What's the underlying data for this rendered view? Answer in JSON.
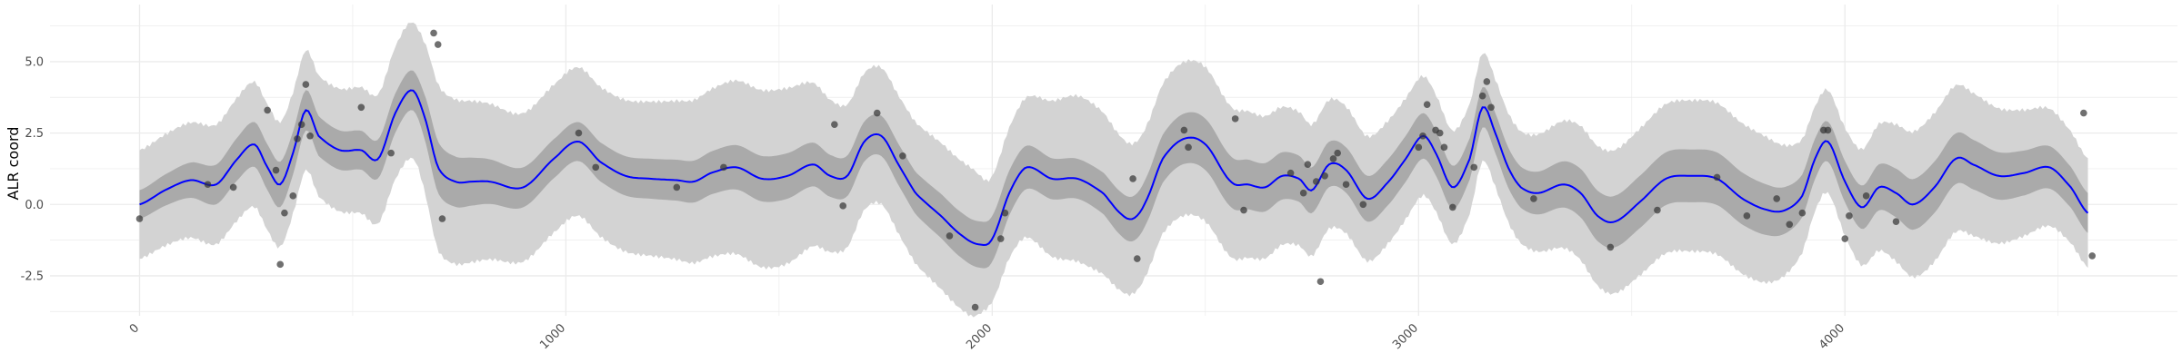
{
  "chart_data": {
    "type": "line",
    "title": "",
    "xlabel": "",
    "ylabel": "ALR coord",
    "xlim": [
      -210,
      4780
    ],
    "ylim": [
      -3.9,
      7.0
    ],
    "x_ticks": [
      0,
      1000,
      2000,
      3000,
      4000
    ],
    "x_tick_labels": [
      "0",
      "1000",
      "2000",
      "3000",
      "4000"
    ],
    "y_ticks": [
      -2.5,
      0.0,
      2.5,
      5.0
    ],
    "y_tick_labels": [
      "-2.5",
      "0.0",
      "2.5",
      "5.0"
    ],
    "grid": true,
    "legend": "none",
    "colors": {
      "mean_line": "#0000ff",
      "inner_band": "#aaaaaa",
      "outer_band": "#d3d3d3",
      "points": "#333333",
      "grid": "#ebebeb"
    },
    "series": [
      {
        "kind": "mean",
        "x": [
          0,
          60,
          120,
          180,
          230,
          270,
          300,
          330,
          360,
          390,
          420,
          470,
          520,
          560,
          600,
          640,
          670,
          700,
          740,
          780,
          820,
          900,
          980,
          1030,
          1080,
          1140,
          1200,
          1260,
          1300,
          1340,
          1400,
          1460,
          1520,
          1580,
          1620,
          1660,
          1700,
          1740,
          1780,
          1820,
          1880,
          1930,
          1970,
          2000,
          2040,
          2080,
          2140,
          2200,
          2260,
          2300,
          2330,
          2360,
          2400,
          2450,
          2500,
          2560,
          2600,
          2640,
          2680,
          2720,
          2750,
          2790,
          2830,
          2880,
          2930,
          2970,
          3010,
          3040,
          3080,
          3120,
          3150,
          3180,
          3210,
          3240,
          3280,
          3340,
          3380,
          3420,
          3460,
          3520,
          3580,
          3640,
          3700,
          3760,
          3820,
          3860,
          3900,
          3930,
          3960,
          4000,
          4040,
          4080,
          4120,
          4160,
          4210,
          4260,
          4300,
          4360,
          4420,
          4480,
          4530,
          4570
        ],
        "y": [
          0.0,
          0.5,
          0.85,
          0.7,
          1.6,
          2.1,
          1.3,
          0.7,
          1.8,
          3.3,
          2.4,
          1.9,
          1.9,
          1.6,
          3.2,
          4.0,
          3.0,
          1.3,
          0.8,
          0.8,
          0.8,
          0.6,
          1.7,
          2.2,
          1.5,
          1.0,
          0.9,
          0.85,
          0.8,
          1.1,
          1.3,
          0.9,
          1.0,
          1.4,
          1.0,
          1.0,
          2.2,
          2.4,
          1.4,
          0.4,
          -0.4,
          -1.1,
          -1.4,
          -1.2,
          0.4,
          1.3,
          0.9,
          0.9,
          0.4,
          -0.3,
          -0.5,
          0.1,
          1.6,
          2.3,
          2.1,
          0.8,
          0.7,
          0.6,
          1.0,
          0.9,
          0.5,
          1.4,
          1.2,
          0.2,
          0.8,
          1.6,
          2.4,
          1.8,
          0.6,
          1.6,
          3.4,
          2.5,
          1.3,
          0.6,
          0.4,
          0.7,
          0.4,
          -0.4,
          -0.6,
          0.1,
          0.9,
          1.0,
          0.9,
          0.2,
          -0.2,
          -0.2,
          0.3,
          1.6,
          2.2,
          0.8,
          -0.1,
          0.6,
          0.4,
          0.0,
          0.6,
          1.6,
          1.4,
          1.0,
          1.1,
          1.3,
          0.6,
          -0.3
        ]
      },
      {
        "kind": "inner_band_halfwidth",
        "x": [
          0,
          300,
          400,
          650,
          700,
          900,
          1200,
          1500,
          1700,
          1950,
          2000,
          2200,
          2350,
          2500,
          2750,
          3000,
          3200,
          3450,
          3800,
          3950,
          4200,
          4570
        ],
        "y": [
          0.5,
          0.8,
          0.7,
          0.7,
          0.9,
          0.7,
          0.7,
          0.8,
          0.7,
          0.8,
          0.8,
          0.7,
          0.8,
          0.9,
          0.8,
          0.8,
          0.7,
          0.9,
          0.9,
          0.7,
          0.9,
          0.7
        ]
      },
      {
        "kind": "outer_band_halfwidth",
        "x": [
          0,
          300,
          400,
          650,
          700,
          900,
          1200,
          1500,
          1700,
          1950,
          2000,
          2200,
          2350,
          2500,
          2750,
          3000,
          3200,
          3450,
          3800,
          3950,
          4200,
          4570
        ],
        "y": [
          1.9,
          2.2,
          2.1,
          2.4,
          2.9,
          2.6,
          2.7,
          3.1,
          2.4,
          2.6,
          2.2,
          2.9,
          2.6,
          2.7,
          2.3,
          2.1,
          1.9,
          2.5,
          2.6,
          1.8,
          2.6,
          1.9
        ]
      },
      {
        "kind": "points",
        "x": [
          0,
          160,
          220,
          300,
          320,
          330,
          340,
          360,
          370,
          380,
          390,
          400,
          520,
          590,
          690,
          700,
          710,
          1030,
          1070,
          1260,
          1370,
          1630,
          1650,
          1730,
          1790,
          1900,
          1960,
          2020,
          2030,
          2330,
          2340,
          2450,
          2460,
          2570,
          2590,
          2700,
          2730,
          2740,
          2760,
          2770,
          2780,
          2800,
          2810,
          2830,
          2870,
          3000,
          3010,
          3020,
          3040,
          3050,
          3060,
          3080,
          3130,
          3150,
          3160,
          3170,
          3270,
          3450,
          3560,
          3700,
          3770,
          3840,
          3870,
          3900,
          3950,
          3960,
          4000,
          4010,
          4050,
          4120,
          4560,
          4580
        ],
        "y": [
          -0.5,
          0.7,
          0.6,
          3.3,
          1.2,
          -2.1,
          -0.3,
          0.3,
          2.3,
          2.8,
          4.2,
          2.4,
          3.4,
          1.8,
          6.0,
          5.6,
          -0.5,
          2.5,
          1.3,
          0.6,
          1.3,
          2.8,
          -0.05,
          3.2,
          1.7,
          -1.1,
          -3.6,
          -1.2,
          -0.3,
          0.9,
          -1.9,
          2.6,
          2.0,
          3.0,
          -0.2,
          1.1,
          0.4,
          1.4,
          0.8,
          -2.7,
          1.0,
          1.6,
          1.8,
          0.7,
          0.0,
          2.0,
          2.4,
          3.5,
          2.6,
          2.5,
          2.0,
          -0.1,
          1.3,
          3.8,
          4.3,
          3.4,
          0.2,
          -1.5,
          -0.2,
          0.95,
          -0.4,
          0.2,
          -0.7,
          -0.3,
          2.6,
          2.6,
          -1.2,
          -0.4,
          0.3,
          -0.6,
          3.2,
          -1.8
        ]
      }
    ]
  }
}
